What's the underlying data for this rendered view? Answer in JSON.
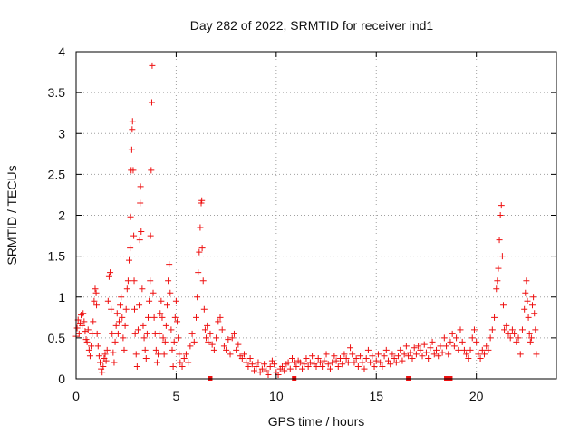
{
  "colors": {
    "series": "#ee1111",
    "grid": "#a0a0a0",
    "frame": "#000000"
  },
  "chart_data": {
    "type": "scatter",
    "title": "Day 282 of 2022, SRMTID for receiver ind1",
    "xlabel": "GPS time / hours",
    "ylabel": "SRMTID / TECUs",
    "xlim": [
      0,
      24
    ],
    "ylim": [
      0,
      4
    ],
    "xticks": [
      0,
      5,
      10,
      15,
      20
    ],
    "yticks": [
      0,
      0.5,
      1,
      1.5,
      2,
      2.5,
      3,
      3.5,
      4
    ],
    "xtick_labels": [
      "0",
      "5",
      "10",
      "15",
      "20"
    ],
    "ytick_labels": [
      "0",
      "0.5",
      "1",
      "1.5",
      "2",
      "2.5",
      "3",
      "3.5",
      "4"
    ],
    "grid": true,
    "marker": "plus",
    "series": [
      {
        "name": "SRMTID",
        "points": [
          [
            0.0,
            0.52
          ],
          [
            0.05,
            0.62
          ],
          [
            0.1,
            0.72
          ],
          [
            0.15,
            0.55
          ],
          [
            0.2,
            0.68
          ],
          [
            0.25,
            0.78
          ],
          [
            0.3,
            0.65
          ],
          [
            0.35,
            0.8
          ],
          [
            0.4,
            0.7
          ],
          [
            0.45,
            0.58
          ],
          [
            0.5,
            0.48
          ],
          [
            0.55,
            0.45
          ],
          [
            0.6,
            0.6
          ],
          [
            0.65,
            0.35
          ],
          [
            0.7,
            0.28
          ],
          [
            0.75,
            0.4
          ],
          [
            0.8,
            0.55
          ],
          [
            0.85,
            0.7
          ],
          [
            0.9,
            0.95
          ],
          [
            0.95,
            1.1
          ],
          [
            1.0,
            1.05
          ],
          [
            1.02,
            0.9
          ],
          [
            1.05,
            0.55
          ],
          [
            1.1,
            0.4
          ],
          [
            1.15,
            0.28
          ],
          [
            1.2,
            0.2
          ],
          [
            1.25,
            0.12
          ],
          [
            1.3,
            0.08
          ],
          [
            1.35,
            0.15
          ],
          [
            1.4,
            0.25
          ],
          [
            1.45,
            0.3
          ],
          [
            1.5,
            0.22
          ],
          [
            1.55,
            0.35
          ],
          [
            1.6,
            0.95
          ],
          [
            1.65,
            1.25
          ],
          [
            1.7,
            1.3
          ],
          [
            1.75,
            0.85
          ],
          [
            1.8,
            0.55
          ],
          [
            1.85,
            0.32
          ],
          [
            1.9,
            0.2
          ],
          [
            1.95,
            0.45
          ],
          [
            2.0,
            0.65
          ],
          [
            2.05,
            0.8
          ],
          [
            2.1,
            0.55
          ],
          [
            2.15,
            0.7
          ],
          [
            2.2,
            0.9
          ],
          [
            2.25,
            1.0
          ],
          [
            2.3,
            0.75
          ],
          [
            2.35,
            0.5
          ],
          [
            2.4,
            0.35
          ],
          [
            2.45,
            0.65
          ],
          [
            2.5,
            0.85
          ],
          [
            2.55,
            1.1
          ],
          [
            2.6,
            1.2
          ],
          [
            2.65,
            1.45
          ],
          [
            2.7,
            1.6
          ],
          [
            2.72,
            1.98
          ],
          [
            2.75,
            2.55
          ],
          [
            2.78,
            2.8
          ],
          [
            2.8,
            3.05
          ],
          [
            2.82,
            3.15
          ],
          [
            2.85,
            2.55
          ],
          [
            2.88,
            1.75
          ],
          [
            2.9,
            1.2
          ],
          [
            2.92,
            0.85
          ],
          [
            2.95,
            0.55
          ],
          [
            3.0,
            0.3
          ],
          [
            3.05,
            0.15
          ],
          [
            3.1,
            0.6
          ],
          [
            3.15,
            0.9
          ],
          [
            3.18,
            1.7
          ],
          [
            3.2,
            2.15
          ],
          [
            3.22,
            2.35
          ],
          [
            3.25,
            1.8
          ],
          [
            3.3,
            1.1
          ],
          [
            3.35,
            0.65
          ],
          [
            3.4,
            0.5
          ],
          [
            3.45,
            0.35
          ],
          [
            3.5,
            0.25
          ],
          [
            3.55,
            0.55
          ],
          [
            3.6,
            0.75
          ],
          [
            3.65,
            0.95
          ],
          [
            3.7,
            1.2
          ],
          [
            3.72,
            1.75
          ],
          [
            3.75,
            2.55
          ],
          [
            3.78,
            3.38
          ],
          [
            3.8,
            3.83
          ],
          [
            3.85,
            1.05
          ],
          [
            3.9,
            0.75
          ],
          [
            3.95,
            0.55
          ],
          [
            4.0,
            0.35
          ],
          [
            4.05,
            0.2
          ],
          [
            4.1,
            0.3
          ],
          [
            4.15,
            0.55
          ],
          [
            4.2,
            0.8
          ],
          [
            4.25,
            0.95
          ],
          [
            4.3,
            0.75
          ],
          [
            4.35,
            0.5
          ],
          [
            4.4,
            0.3
          ],
          [
            4.45,
            0.45
          ],
          [
            4.5,
            0.65
          ],
          [
            4.55,
            0.9
          ],
          [
            4.6,
            1.2
          ],
          [
            4.65,
            1.4
          ],
          [
            4.7,
            1.05
          ],
          [
            4.75,
            0.6
          ],
          [
            4.8,
            0.35
          ],
          [
            4.85,
            0.15
          ],
          [
            4.9,
            0.45
          ],
          [
            4.95,
            0.75
          ],
          [
            5.0,
            0.95
          ],
          [
            5.05,
            0.7
          ],
          [
            5.1,
            0.5
          ],
          [
            5.15,
            0.3
          ],
          [
            5.2,
            0.2
          ],
          [
            5.3,
            0.15
          ],
          [
            5.4,
            0.25
          ],
          [
            5.5,
            0.3
          ],
          [
            5.6,
            0.2
          ],
          [
            5.7,
            0.4
          ],
          [
            5.8,
            0.55
          ],
          [
            5.9,
            0.45
          ],
          [
            6.0,
            0.75
          ],
          [
            6.05,
            1.0
          ],
          [
            6.1,
            1.3
          ],
          [
            6.15,
            1.55
          ],
          [
            6.2,
            1.85
          ],
          [
            6.25,
            2.15
          ],
          [
            6.28,
            2.18
          ],
          [
            6.3,
            1.6
          ],
          [
            6.35,
            1.2
          ],
          [
            6.4,
            0.85
          ],
          [
            6.45,
            0.6
          ],
          [
            6.5,
            0.5
          ],
          [
            6.55,
            0.65
          ],
          [
            6.6,
            0.45
          ],
          [
            6.7,
            0.55
          ],
          [
            6.8,
            0.42
          ],
          [
            6.9,
            0.35
          ],
          [
            7.0,
            0.5
          ],
          [
            7.1,
            0.7
          ],
          [
            7.2,
            0.75
          ],
          [
            7.3,
            0.6
          ],
          [
            7.4,
            0.4
          ],
          [
            7.5,
            0.35
          ],
          [
            7.6,
            0.48
          ],
          [
            7.7,
            0.3
          ],
          [
            7.8,
            0.5
          ],
          [
            7.9,
            0.55
          ],
          [
            8.0,
            0.35
          ],
          [
            8.1,
            0.42
          ],
          [
            8.2,
            0.28
          ],
          [
            8.3,
            0.25
          ],
          [
            8.4,
            0.3
          ],
          [
            8.5,
            0.2
          ],
          [
            8.6,
            0.15
          ],
          [
            8.7,
            0.25
          ],
          [
            8.8,
            0.18
          ],
          [
            8.9,
            0.1
          ],
          [
            9.0,
            0.15
          ],
          [
            9.1,
            0.2
          ],
          [
            9.2,
            0.08
          ],
          [
            9.3,
            0.12
          ],
          [
            9.4,
            0.18
          ],
          [
            9.5,
            0.1
          ],
          [
            9.6,
            0.05
          ],
          [
            9.7,
            0.15
          ],
          [
            9.8,
            0.22
          ],
          [
            9.9,
            0.18
          ],
          [
            10.0,
            0.08
          ],
          [
            10.1,
            0.05
          ],
          [
            10.2,
            0.12
          ],
          [
            10.3,
            0.15
          ],
          [
            10.4,
            0.1
          ],
          [
            10.5,
            0.18
          ],
          [
            10.6,
            0.2
          ],
          [
            10.7,
            0.12
          ],
          [
            10.8,
            0.25
          ],
          [
            10.9,
            0.2
          ],
          [
            11.0,
            0.15
          ],
          [
            11.1,
            0.22
          ],
          [
            11.2,
            0.2
          ],
          [
            11.3,
            0.12
          ],
          [
            11.4,
            0.18
          ],
          [
            11.5,
            0.25
          ],
          [
            11.6,
            0.15
          ],
          [
            11.7,
            0.2
          ],
          [
            11.8,
            0.28
          ],
          [
            11.9,
            0.18
          ],
          [
            12.0,
            0.15
          ],
          [
            12.1,
            0.25
          ],
          [
            12.2,
            0.2
          ],
          [
            12.3,
            0.15
          ],
          [
            12.4,
            0.22
          ],
          [
            12.5,
            0.3
          ],
          [
            12.6,
            0.18
          ],
          [
            12.7,
            0.12
          ],
          [
            12.8,
            0.2
          ],
          [
            12.9,
            0.28
          ],
          [
            13.0,
            0.22
          ],
          [
            13.1,
            0.15
          ],
          [
            13.2,
            0.25
          ],
          [
            13.3,
            0.18
          ],
          [
            13.4,
            0.3
          ],
          [
            13.5,
            0.25
          ],
          [
            13.6,
            0.2
          ],
          [
            13.7,
            0.38
          ],
          [
            13.8,
            0.3
          ],
          [
            13.9,
            0.2
          ],
          [
            14.0,
            0.25
          ],
          [
            14.1,
            0.15
          ],
          [
            14.2,
            0.28
          ],
          [
            14.3,
            0.2
          ],
          [
            14.4,
            0.12
          ],
          [
            14.5,
            0.25
          ],
          [
            14.6,
            0.35
          ],
          [
            14.7,
            0.2
          ],
          [
            14.8,
            0.28
          ],
          [
            14.9,
            0.15
          ],
          [
            15.0,
            0.22
          ],
          [
            15.1,
            0.3
          ],
          [
            15.2,
            0.2
          ],
          [
            15.3,
            0.15
          ],
          [
            15.4,
            0.28
          ],
          [
            15.5,
            0.35
          ],
          [
            15.6,
            0.22
          ],
          [
            15.7,
            0.18
          ],
          [
            15.8,
            0.3
          ],
          [
            15.9,
            0.25
          ],
          [
            16.0,
            0.2
          ],
          [
            16.1,
            0.28
          ],
          [
            16.2,
            0.35
          ],
          [
            16.3,
            0.22
          ],
          [
            16.4,
            0.3
          ],
          [
            16.5,
            0.4
          ],
          [
            16.6,
            0.28
          ],
          [
            16.7,
            0.32
          ],
          [
            16.8,
            0.25
          ],
          [
            16.9,
            0.38
          ],
          [
            17.0,
            0.3
          ],
          [
            17.1,
            0.4
          ],
          [
            17.2,
            0.35
          ],
          [
            17.3,
            0.28
          ],
          [
            17.4,
            0.42
          ],
          [
            17.5,
            0.32
          ],
          [
            17.6,
            0.25
          ],
          [
            17.7,
            0.38
          ],
          [
            17.8,
            0.45
          ],
          [
            17.9,
            0.3
          ],
          [
            18.0,
            0.35
          ],
          [
            18.1,
            0.28
          ],
          [
            18.2,
            0.4
          ],
          [
            18.3,
            0.32
          ],
          [
            18.4,
            0.5
          ],
          [
            18.5,
            0.4
          ],
          [
            18.6,
            0.3
          ],
          [
            18.7,
            0.45
          ],
          [
            18.8,
            0.55
          ],
          [
            18.9,
            0.4
          ],
          [
            19.0,
            0.5
          ],
          [
            19.1,
            0.35
          ],
          [
            19.2,
            0.6
          ],
          [
            19.3,
            0.45
          ],
          [
            19.4,
            0.35
          ],
          [
            19.5,
            0.3
          ],
          [
            19.6,
            0.25
          ],
          [
            19.7,
            0.35
          ],
          [
            19.8,
            0.5
          ],
          [
            19.9,
            0.6
          ],
          [
            20.0,
            0.45
          ],
          [
            20.1,
            0.3
          ],
          [
            20.2,
            0.25
          ],
          [
            20.3,
            0.35
          ],
          [
            20.4,
            0.3
          ],
          [
            20.5,
            0.4
          ],
          [
            20.6,
            0.35
          ],
          [
            20.7,
            0.5
          ],
          [
            20.8,
            0.6
          ],
          [
            20.9,
            0.75
          ],
          [
            21.0,
            1.1
          ],
          [
            21.05,
            1.2
          ],
          [
            21.1,
            1.35
          ],
          [
            21.15,
            1.7
          ],
          [
            21.2,
            2.0
          ],
          [
            21.25,
            2.12
          ],
          [
            21.3,
            1.5
          ],
          [
            21.35,
            0.9
          ],
          [
            21.4,
            0.6
          ],
          [
            21.5,
            0.65
          ],
          [
            21.6,
            0.55
          ],
          [
            21.7,
            0.5
          ],
          [
            21.8,
            0.6
          ],
          [
            21.9,
            0.55
          ],
          [
            22.0,
            0.45
          ],
          [
            22.1,
            0.5
          ],
          [
            22.2,
            0.3
          ],
          [
            22.3,
            0.6
          ],
          [
            22.4,
            0.85
          ],
          [
            22.45,
            1.05
          ],
          [
            22.5,
            1.2
          ],
          [
            22.55,
            0.95
          ],
          [
            22.6,
            0.75
          ],
          [
            22.65,
            0.55
          ],
          [
            22.7,
            0.45
          ],
          [
            22.75,
            0.5
          ],
          [
            22.8,
            0.9
          ],
          [
            22.85,
            1.0
          ],
          [
            22.9,
            0.8
          ],
          [
            22.95,
            0.6
          ],
          [
            23.0,
            0.3
          ]
        ]
      }
    ],
    "markers_on_axis": [
      6.7,
      10.9,
      16.6,
      18.5,
      18.7
    ]
  }
}
